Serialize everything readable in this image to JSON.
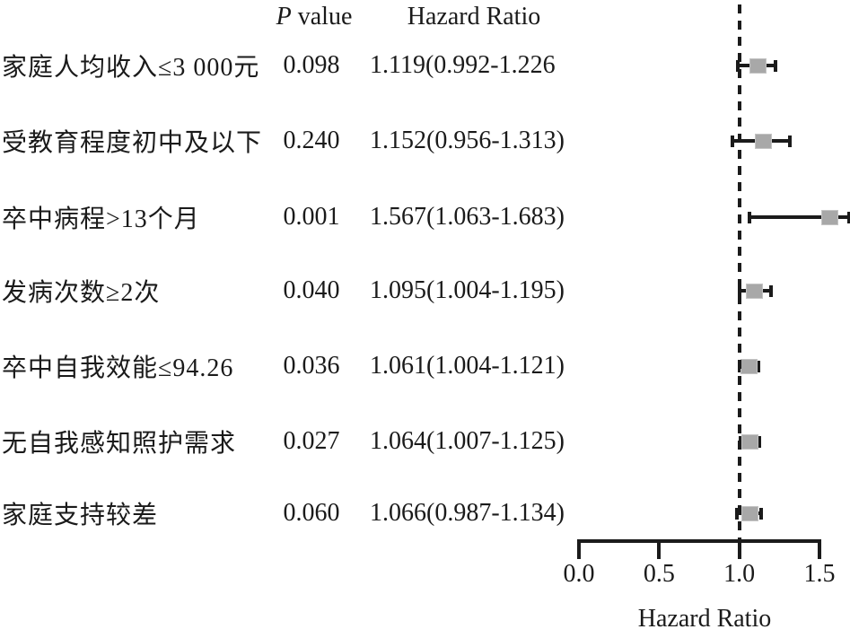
{
  "chart_data": {
    "type": "forest",
    "title": "",
    "column_headers": {
      "p_italic": "P",
      "p_rest": " value",
      "hazard_ratio": "Hazard Ratio"
    },
    "xlabel": "Hazard Ratio",
    "xlim": [
      0,
      1.5
    ],
    "x_ticks": [
      0,
      0.5,
      1.0,
      1.5
    ],
    "x_tick_labels": [
      "0.0",
      "0.5",
      "1.0",
      "1.5"
    ],
    "reference_line": 1.0,
    "grid": false,
    "legend": false,
    "rows": [
      {
        "label": "家庭人均收入≤3 000元",
        "p_value": "0.098",
        "hr_ci_text": "1.119(0.992-1.226",
        "hr": 1.119,
        "ci_low": 0.992,
        "ci_high": 1.226
      },
      {
        "label": "受教育程度初中及以下",
        "p_value": "0.240",
        "hr_ci_text": "1.152(0.956-1.313)",
        "hr": 1.152,
        "ci_low": 0.956,
        "ci_high": 1.313
      },
      {
        "label": "卒中病程>13个月",
        "p_value": "0.001",
        "hr_ci_text": "1.567(1.063-1.683)",
        "hr": 1.567,
        "ci_low": 1.063,
        "ci_high": 1.683
      },
      {
        "label": "发病次数≥2次",
        "p_value": "0.040",
        "hr_ci_text": "1.095(1.004-1.195)",
        "hr": 1.095,
        "ci_low": 1.004,
        "ci_high": 1.195
      },
      {
        "label": "卒中自我效能≤94.26",
        "p_value": "0.036",
        "hr_ci_text": "1.061(1.004-1.121)",
        "hr": 1.061,
        "ci_low": 1.004,
        "ci_high": 1.121
      },
      {
        "label": "无自我感知照护需求",
        "p_value": "0.027",
        "hr_ci_text": "1.064(1.007-1.125)",
        "hr": 1.064,
        "ci_low": 1.007,
        "ci_high": 1.125
      },
      {
        "label": "家庭支持较差",
        "p_value": "0.060",
        "hr_ci_text": "1.066(0.987-1.134)",
        "hr": 1.066,
        "ci_low": 0.987,
        "ci_high": 1.134
      }
    ]
  },
  "colors": {
    "text": "#1a1a1a",
    "line": "#1b1b1b",
    "marker_fill": "#a8a8a8",
    "marker_border": "#c4c4c4",
    "background": "#ffffff"
  }
}
